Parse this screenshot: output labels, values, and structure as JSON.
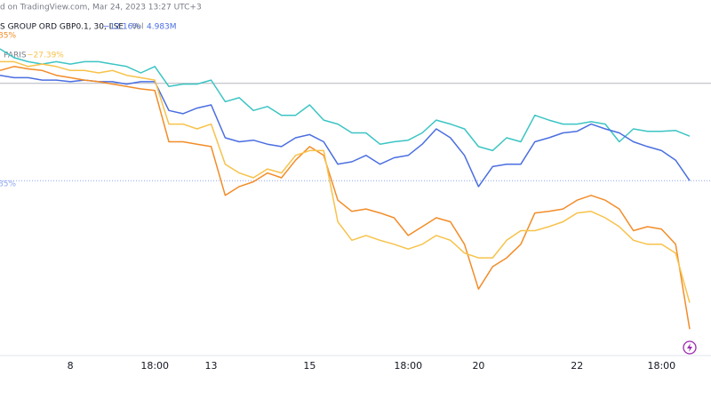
{
  "chart_data": {
    "type": "line",
    "header": {
      "source": "d on TradingView.com, Mar 24, 2023 13:27 UTC+3",
      "symbol": "S GROUP ORD GBP0.1, 30, LSE",
      "change": "−12.16%",
      "volume_label": "Vol",
      "volume": "4.983M",
      "second_change": "85%",
      "second_symbol": "PARIS",
      "second_symbol_change": "−27.39%",
      "line_label": "85%"
    },
    "categories": [
      null,
      null,
      null,
      null,
      null,
      "8",
      null,
      null,
      null,
      null,
      null,
      "18:00",
      null,
      null,
      null,
      "13",
      null,
      null,
      null,
      null,
      null,
      null,
      "15",
      null,
      null,
      null,
      null,
      null,
      null,
      "18:00",
      null,
      null,
      null,
      null,
      "20",
      null,
      null,
      null,
      null,
      null,
      null,
      "22",
      null,
      null,
      null,
      null,
      null,
      "18:00",
      null,
      null
    ],
    "series": [
      {
        "color": "#3cc4c4",
        "values": [
          4.3,
          3.2,
          2.7,
          2.4,
          2.7,
          2.4,
          2.7,
          2.7,
          2.4,
          2.1,
          1.3,
          2.1,
          -0.4,
          -0.1,
          -0.1,
          0.4,
          -2.3,
          -1.8,
          -3.4,
          -2.9,
          -4.0,
          -4.0,
          -2.7,
          -4.6,
          -5.1,
          -6.2,
          -6.2,
          -7.6,
          -7.3,
          -7.1,
          -6.2,
          -4.6,
          -5.1,
          -5.7,
          -7.9,
          -8.4,
          -6.8,
          -7.3,
          -4.0,
          -4.6,
          -5.1,
          -5.1,
          -4.8,
          -5.1,
          -7.3,
          -5.7,
          -6.0,
          -6.0,
          -5.9,
          -6.6
        ]
      },
      {
        "color": "#4a6ee0",
        "values": [
          1.0,
          0.7,
          0.7,
          0.4,
          0.4,
          0.2,
          0.4,
          0.2,
          0.2,
          -0.1,
          0.2,
          0.2,
          -3.4,
          -3.8,
          -3.1,
          -2.7,
          -6.8,
          -7.3,
          -7.1,
          -7.6,
          -7.9,
          -6.8,
          -6.4,
          -7.3,
          -10.1,
          -9.8,
          -9.0,
          -10.1,
          -9.3,
          -9.0,
          -7.6,
          -5.7,
          -6.8,
          -9.0,
          -12.9,
          -10.4,
          -10.1,
          -10.1,
          -7.3,
          -6.8,
          -6.2,
          -6.0,
          -5.1,
          -5.7,
          -6.2,
          -7.3,
          -7.9,
          -8.4,
          -9.6,
          -12.16
        ]
      },
      {
        "color": "#f28c28",
        "values": [
          1.6,
          2.1,
          1.8,
          1.6,
          1.0,
          0.7,
          0.4,
          0.2,
          -0.1,
          -0.4,
          -0.7,
          -0.9,
          -7.3,
          -7.3,
          -7.6,
          -7.9,
          -14.0,
          -12.9,
          -12.3,
          -11.2,
          -11.8,
          -9.6,
          -7.9,
          -9.0,
          -14.6,
          -16.0,
          -15.7,
          -16.2,
          -16.8,
          -19.0,
          -17.9,
          -16.8,
          -17.3,
          -20.1,
          -25.7,
          -22.9,
          -21.8,
          -20.1,
          -16.2,
          -16.0,
          -15.7,
          -14.6,
          -14.0,
          -14.6,
          -15.7,
          -18.4,
          -17.9,
          -18.2,
          -20.1,
          -30.7
        ]
      },
      {
        "color": "#f7c24a",
        "values": [
          2.7,
          2.7,
          2.1,
          2.4,
          2.1,
          1.6,
          1.6,
          1.3,
          1.6,
          1.0,
          0.7,
          0.4,
          -5.1,
          -5.1,
          -5.7,
          -5.1,
          -10.1,
          -11.2,
          -11.8,
          -10.7,
          -11.2,
          -9.0,
          -8.4,
          -8.4,
          -17.3,
          -19.6,
          -19.0,
          -19.6,
          -20.1,
          -20.7,
          -20.1,
          -19.0,
          -19.6,
          -21.2,
          -21.8,
          -21.8,
          -19.6,
          -18.4,
          -18.4,
          -17.9,
          -17.3,
          -16.2,
          -16.0,
          -16.8,
          -17.9,
          -19.6,
          -20.1,
          -20.1,
          -21.2,
          -27.39
        ]
      }
    ],
    "reference_lines": [
      0,
      -12.16
    ],
    "ylim": [
      -34,
      10.4
    ]
  }
}
